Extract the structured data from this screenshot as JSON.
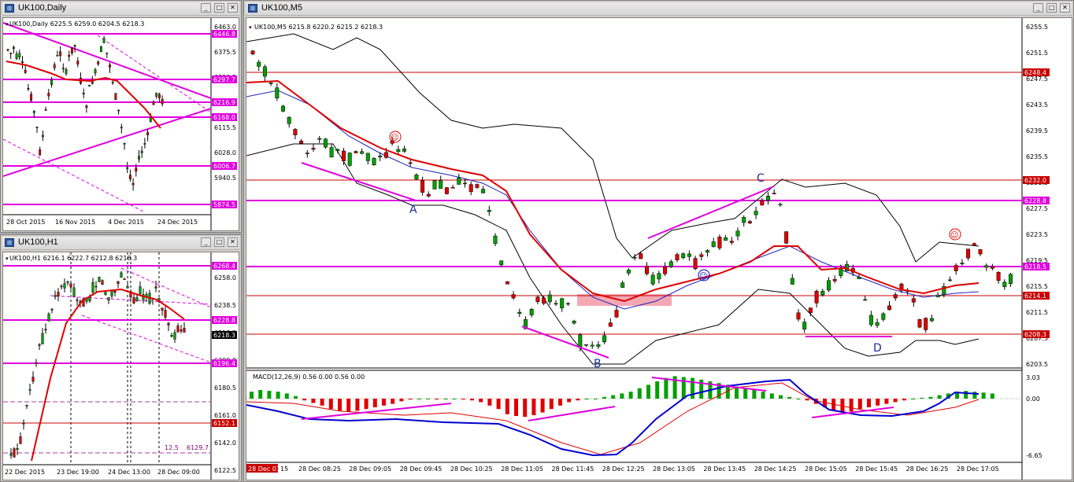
{
  "colors": {
    "bull": "#00a000",
    "bear": "#e00000",
    "level": "#e000e0",
    "red_level": "#c80000",
    "ma": "#e00000",
    "bands": "#000000",
    "zone": "#f4a8b4",
    "macd_line": "#0000d0"
  },
  "daily": {
    "title": "UK100,Daily",
    "info": "UK100,Daily  6225.5 6259.0 6204.5 6218.3",
    "price_ticks": [
      "6463.0",
      "6375.5",
      "6290.5",
      "6205.0",
      "6115.5",
      "6028.0",
      "5940.5",
      "5855.5"
    ],
    "level_tags": [
      "6446.8",
      "6297.7",
      "6216.9",
      "6168.0",
      "6006.7",
      "5874.5"
    ],
    "date_ticks": [
      "28 Oct 2015",
      "16 Nov 2015",
      "4 Dec 2015",
      "24 Dec 2015"
    ]
  },
  "h1": {
    "title": "UK100,H1",
    "info": "UK100,H1  6216.1 6222.7 6212.8 6218.3",
    "price_ticks": [
      "6258.0",
      "6238.5",
      "6218.3",
      "6200.0",
      "6180.5",
      "6161.0",
      "6142.0",
      "6122.5"
    ],
    "level_tags": [
      "6268.4",
      "6228.8",
      "6196.4",
      "6152.1"
    ],
    "current_tag": "6218.3",
    "note_left": "12.5",
    "note_right": "6129.7",
    "date_ticks": [
      "22 Dec 2015",
      "23 Dec 19:00",
      "24 Dec 13:00",
      "28 Dec 09:00"
    ]
  },
  "m5": {
    "title": "UK100,M5",
    "info": "UK100,M5  6215.8 6220.2 6215.2 6218.3",
    "price_ticks": [
      "6255.5",
      "6251.5",
      "6247.5",
      "6243.5",
      "6239.5",
      "6235.5",
      "6231.5",
      "6227.5",
      "6223.5",
      "6219.5",
      "6215.5",
      "6211.5",
      "6207.5",
      "6203.5"
    ],
    "level_tags": [
      {
        "text": "6248.4",
        "kind": "red"
      },
      {
        "text": "6232.0",
        "kind": "red"
      },
      {
        "text": "6228.8",
        "kind": "magenta"
      },
      {
        "text": "6218.5",
        "kind": "magenta"
      },
      {
        "text": "6214.1",
        "kind": "red"
      },
      {
        "text": "6208.3",
        "kind": "red"
      }
    ],
    "labels": [
      "A",
      "B",
      "C",
      "D"
    ],
    "macd_info": "MACD(12,26,9) 0.56 0.00 0.56 0.00",
    "macd_ticks": [
      "3.03",
      "0.00",
      "-6.65"
    ],
    "time_ticks": [
      "28 Dec 07:45",
      "28 Dec 08:25",
      "28 Dec 09:05",
      "28 Dec 09:45",
      "28 Dec 10:25",
      "28 Dec 11:05",
      "28 Dec 11:45",
      "28 Dec 12:25",
      "28 Dec 13:05",
      "28 Dec 13:45",
      "28 Dec 14:25",
      "28 Dec 15:05",
      "28 Dec 15:45",
      "28 Dec 16:25",
      "28 Dec 17:05"
    ],
    "time_tail": "15"
  }
}
